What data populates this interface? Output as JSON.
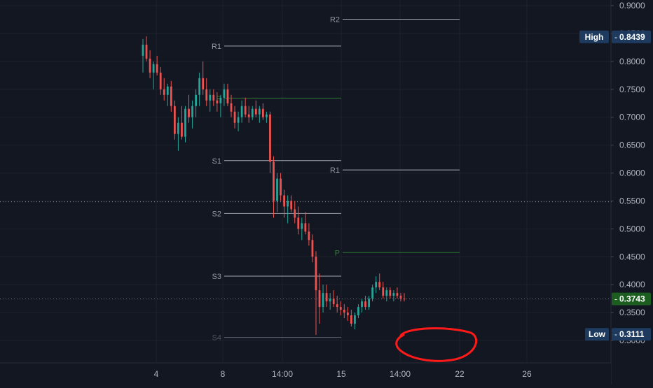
{
  "chart_data": {
    "type": "candlestick",
    "x_tick_labels": [
      "4",
      "8",
      "14:00",
      "15",
      "14:00",
      "22",
      "26"
    ],
    "y_axis": {
      "min": 0.28,
      "max": 0.91,
      "tick_values": [
        0.3,
        0.35,
        0.4,
        0.45,
        0.5,
        0.55,
        0.6,
        0.65,
        0.7,
        0.75,
        0.8,
        0.85,
        0.9
      ],
      "tick_labels": [
        "0.3000",
        "0.3500",
        "0.4000",
        "0.4500",
        "0.5000",
        "0.5500",
        "0.6000",
        "0.6500",
        "0.7000",
        "0.7500",
        "0.8000",
        "0.8500",
        "0.9000"
      ]
    },
    "grid": true,
    "colors": {
      "background": "#131722",
      "grid": "#1e222d",
      "up": "#26a69a",
      "down": "#ef5350",
      "pivot_line": "#b2b5be",
      "pivot_p": "#2e7d32",
      "label_blue": "#1e3a5f",
      "label_green": "#1b5e20",
      "annotation": "#ff1a1a"
    },
    "price_labels": [
      {
        "name": "High",
        "value": 0.8439,
        "text": "0.8439"
      },
      {
        "name": "",
        "value": 0.3743,
        "text": "0.3743"
      },
      {
        "name": "Low",
        "value": 0.3111,
        "text": "0.3111"
      }
    ],
    "crosshair_value": 0.5485,
    "pivot_sets": [
      {
        "period": 1,
        "levels": [
          {
            "label": "R1",
            "value": 0.8275
          },
          {
            "label": "P",
            "value": 0.7342
          },
          {
            "label": "S1",
            "value": 0.6222
          },
          {
            "label": "S2",
            "value": 0.5275
          },
          {
            "label": "S3",
            "value": 0.4153
          },
          {
            "label": "S4",
            "value": 0.3055
          }
        ]
      },
      {
        "period": 2,
        "levels": [
          {
            "label": "R2",
            "value": 0.8755
          },
          {
            "label": "R1",
            "value": 0.6055
          },
          {
            "label": "P",
            "value": 0.4575
          }
        ]
      }
    ],
    "candles": [
      [
        0.81,
        0.84,
        0.78,
        0.83
      ],
      [
        0.83,
        0.845,
        0.8,
        0.805
      ],
      [
        0.805,
        0.82,
        0.77,
        0.78
      ],
      [
        0.78,
        0.8,
        0.75,
        0.795
      ],
      [
        0.795,
        0.81,
        0.775,
        0.78
      ],
      [
        0.78,
        0.79,
        0.74,
        0.75
      ],
      [
        0.75,
        0.77,
        0.73,
        0.74
      ],
      [
        0.74,
        0.76,
        0.72,
        0.755
      ],
      [
        0.755,
        0.765,
        0.71,
        0.72
      ],
      [
        0.72,
        0.73,
        0.66,
        0.67
      ],
      [
        0.67,
        0.7,
        0.64,
        0.69
      ],
      [
        0.69,
        0.72,
        0.66,
        0.665
      ],
      [
        0.665,
        0.72,
        0.655,
        0.715
      ],
      [
        0.715,
        0.74,
        0.69,
        0.7
      ],
      [
        0.7,
        0.73,
        0.68,
        0.72
      ],
      [
        0.72,
        0.75,
        0.7,
        0.74
      ],
      [
        0.74,
        0.78,
        0.72,
        0.77
      ],
      [
        0.77,
        0.8,
        0.74,
        0.75
      ],
      [
        0.75,
        0.77,
        0.72,
        0.73
      ],
      [
        0.73,
        0.75,
        0.71,
        0.74
      ],
      [
        0.74,
        0.75,
        0.72,
        0.73
      ],
      [
        0.73,
        0.745,
        0.71,
        0.725
      ],
      [
        0.725,
        0.74,
        0.7,
        0.735
      ],
      [
        0.735,
        0.76,
        0.72,
        0.75
      ],
      [
        0.75,
        0.76,
        0.72,
        0.725
      ],
      [
        0.725,
        0.74,
        0.7,
        0.71
      ],
      [
        0.71,
        0.72,
        0.68,
        0.69
      ],
      [
        0.69,
        0.71,
        0.675,
        0.7
      ],
      [
        0.7,
        0.73,
        0.69,
        0.72
      ],
      [
        0.72,
        0.735,
        0.7,
        0.705
      ],
      [
        0.705,
        0.72,
        0.69,
        0.7
      ],
      [
        0.7,
        0.72,
        0.695,
        0.715
      ],
      [
        0.715,
        0.73,
        0.7,
        0.705
      ],
      [
        0.705,
        0.72,
        0.69,
        0.715
      ],
      [
        0.715,
        0.725,
        0.695,
        0.7
      ],
      [
        0.7,
        0.71,
        0.69,
        0.705
      ],
      [
        0.705,
        0.71,
        0.6,
        0.62
      ],
      [
        0.62,
        0.63,
        0.52,
        0.55
      ],
      [
        0.55,
        0.6,
        0.53,
        0.59
      ],
      [
        0.59,
        0.6,
        0.55,
        0.56
      ],
      [
        0.56,
        0.57,
        0.52,
        0.54
      ],
      [
        0.54,
        0.56,
        0.51,
        0.55
      ],
      [
        0.55,
        0.56,
        0.53,
        0.535
      ],
      [
        0.535,
        0.55,
        0.51,
        0.52
      ],
      [
        0.52,
        0.54,
        0.49,
        0.5
      ],
      [
        0.5,
        0.52,
        0.48,
        0.51
      ],
      [
        0.51,
        0.53,
        0.49,
        0.495
      ],
      [
        0.495,
        0.51,
        0.47,
        0.48
      ],
      [
        0.48,
        0.49,
        0.44,
        0.45
      ],
      [
        0.45,
        0.46,
        0.31,
        0.39
      ],
      [
        0.39,
        0.42,
        0.33,
        0.36
      ],
      [
        0.36,
        0.4,
        0.35,
        0.385
      ],
      [
        0.385,
        0.4,
        0.36,
        0.37
      ],
      [
        0.37,
        0.385,
        0.355,
        0.375
      ],
      [
        0.375,
        0.39,
        0.36,
        0.365
      ],
      [
        0.365,
        0.38,
        0.35,
        0.36
      ],
      [
        0.36,
        0.37,
        0.345,
        0.355
      ],
      [
        0.355,
        0.365,
        0.34,
        0.35
      ],
      [
        0.35,
        0.36,
        0.335,
        0.345
      ],
      [
        0.345,
        0.355,
        0.325,
        0.33
      ],
      [
        0.33,
        0.35,
        0.32,
        0.345
      ],
      [
        0.345,
        0.365,
        0.34,
        0.36
      ],
      [
        0.36,
        0.375,
        0.35,
        0.37
      ],
      [
        0.37,
        0.38,
        0.355,
        0.36
      ],
      [
        0.36,
        0.38,
        0.355,
        0.375
      ],
      [
        0.375,
        0.4,
        0.37,
        0.395
      ],
      [
        0.395,
        0.415,
        0.385,
        0.405
      ],
      [
        0.405,
        0.42,
        0.39,
        0.395
      ],
      [
        0.395,
        0.405,
        0.375,
        0.38
      ],
      [
        0.38,
        0.395,
        0.37,
        0.39
      ],
      [
        0.39,
        0.395,
        0.375,
        0.38
      ],
      [
        0.38,
        0.39,
        0.37,
        0.385
      ],
      [
        0.385,
        0.395,
        0.375,
        0.38
      ],
      [
        0.38,
        0.385,
        0.37,
        0.375
      ],
      [
        0.375,
        0.385,
        0.37,
        0.3743
      ]
    ],
    "annotation": {
      "type": "freehand-ellipse",
      "color": "#ff1a1a"
    }
  }
}
